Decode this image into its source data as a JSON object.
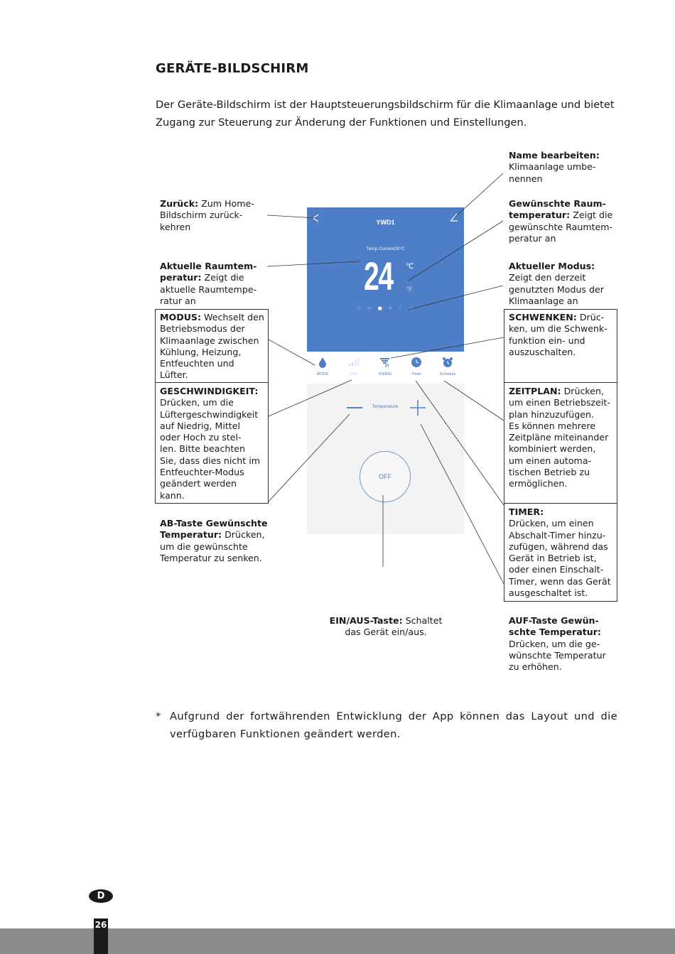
{
  "page": {
    "title": "GERÄTE-BILDSCHIRM",
    "intro": "Der Geräte-Bildschirm ist der Hauptsteuerungsbildschirm für die Klimaanlage und bietet Zugang zur Steuerung zur Änderung der Funktionen und Einstellungen.",
    "footnote_mark": "*",
    "footnote": "Aufgrund der fortwährenden Entwicklung der App können das Layout und die verfügbaren Funktionen geändert werden.",
    "language_badge": "D",
    "page_number": "26"
  },
  "app": {
    "device_name": "YWD1",
    "current_temp": "Temp Current28°C",
    "set_temp": "24",
    "unit_c": "℃",
    "unit_f": "℉",
    "accent_color": "#4f7ec9",
    "mode_icons": [
      "sun-icon",
      "fan-icon",
      "drop-icon",
      "snowflake-icon",
      "moon-icon",
      "wind-icon"
    ],
    "active_mode": "drop-icon",
    "tabs": [
      "MODE",
      "FAN",
      "SWING",
      "Timer",
      "Schedule"
    ],
    "temperature_label": "Temperature",
    "power_label": "OFF"
  },
  "annotations": {
    "back": {
      "bold": "Zurück:",
      "text": " Zum Home-\nBildschirm zurück-\nkehren"
    },
    "current_temp": {
      "bold": "Aktuelle Raumtem-\nperatur:",
      "text": " Zeigt die\naktuelle Raumtempe-\nratur an"
    },
    "mode": {
      "bold": "MODUS:",
      "text": " Wechselt den\nBetriebsmodus der\nKlimaanlage zwischen\nKühlung, Heizung,\nEntfeuchten und\nLüfter."
    },
    "speed": {
      "bold": "GESCHWINDIGKEIT:",
      "text": "\nDrücken, um die\nLüftergeschwindigkeit\nauf Niedrig, Mittel\noder Hoch zu stel-\nlen. Bitte beachten\nSie, dass dies nicht im\nEntfeuchter-Modus\ngeändert werden\nkann."
    },
    "down": {
      "bold": "AB-Taste Gewünschte\nTemperatur:",
      "text": " Drücken,\num die gewünschte\nTemperatur zu senken."
    },
    "rename": {
      "bold": "Name bearbeiten:",
      "text": "\nKlimaanlage umbe-\nnennen"
    },
    "desired_temp": {
      "bold": "Gewünschte Raum-\ntemperatur:",
      "text": " Zeigt die\ngewünschte Raumtem-\nperatur an"
    },
    "current_mode": {
      "bold": "Aktueller Modus:",
      "text": "\nZeigt den derzeit\ngenutzten Modus der\nKlimaanlage an"
    },
    "swing": {
      "bold": "SCHWENKEN:",
      "text": " Drüc-\nken, um die Schwenk-\nfunktion ein- und\nauszuschalten."
    },
    "schedule": {
      "bold": "ZEITPLAN:",
      "text": " Drücken,\num einen Betriebszeit-\nplan hinzuzufügen.\nEs können mehrere\nZeitpläne miteinander\nkombiniert werden,\num einen automa-\ntischen Betrieb zu\nermöglichen."
    },
    "timer": {
      "bold": "TIMER:",
      "text": "\nDrücken, um einen\nAbschalt-Timer hinzu-\nzufügen, während das\nGerät in Betrieb ist,\noder einen Einschalt-\nTimer, wenn das Gerät\nausgeschaltet ist."
    },
    "power": {
      "bold": "EIN/AUS-Taste:",
      "text": " Schaltet\ndas Gerät ein/aus."
    },
    "up": {
      "bold": "AUF-Taste Gewün-\nschte Temperatur:",
      "text": "\nDrücken, um die ge-\nwünschte Temperatur\nzu erhöhen."
    }
  }
}
